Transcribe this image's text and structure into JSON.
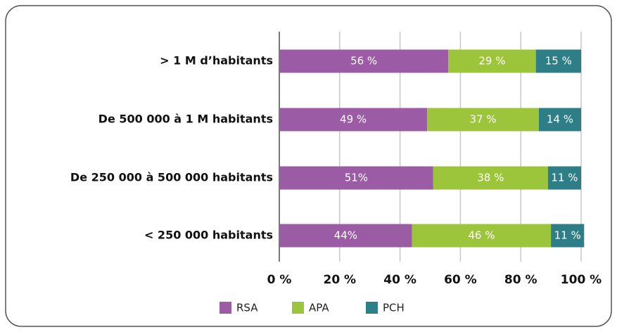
{
  "chart_data": {
    "type": "stacked-bar-horizontal",
    "categories": [
      "> 1 M d’habitants",
      "De 500 000 à 1 M habitants",
      "De 250 000 à 500 000 habitants",
      "< 250 000 habitants"
    ],
    "series": [
      {
        "name": "RSA",
        "color": "#9b5ba5",
        "values": [
          56,
          49,
          51,
          44
        ],
        "value_labels": [
          "56 %",
          "49 %",
          "51%",
          "44%"
        ]
      },
      {
        "name": "APA",
        "color": "#9dc53b",
        "values": [
          29,
          37,
          38,
          46
        ],
        "value_labels": [
          "29 %",
          "37 %",
          "38 %",
          "46 %"
        ]
      },
      {
        "name": "PCH",
        "color": "#2d7e86",
        "values": [
          15,
          14,
          11,
          11
        ],
        "value_labels": [
          "15 %",
          "14 %",
          "11 %",
          "11 %"
        ]
      }
    ],
    "xlim": [
      0,
      100
    ],
    "xticks": [
      {
        "value": 0,
        "label": "0 %"
      },
      {
        "value": 20,
        "label": "20 %"
      },
      {
        "value": 40,
        "label": "40 %"
      },
      {
        "value": 60,
        "label": "60 %"
      },
      {
        "value": 80,
        "label": "80 %"
      },
      {
        "value": 100,
        "label": "100 %"
      }
    ],
    "grid": true
  }
}
